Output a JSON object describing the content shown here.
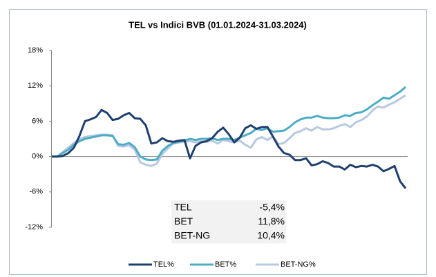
{
  "chart_data": {
    "type": "line",
    "title": "TEL vs Indici BVB (01.01.2024-31.03.2024)",
    "ylim": [
      -12,
      18
    ],
    "yticks": [
      {
        "value": -12,
        "label": "-12%"
      },
      {
        "value": -6,
        "label": "-6%"
      },
      {
        "value": 0,
        "label": "0%"
      },
      {
        "value": 6,
        "label": "6%"
      },
      {
        "value": 12,
        "label": "12%"
      },
      {
        "value": 18,
        "label": "18%"
      }
    ],
    "grid": false,
    "legend": "bottom",
    "series": [
      {
        "name": "TEL%",
        "color": "#1f3f6e",
        "values": [
          0,
          0,
          0.1,
          0.6,
          1.5,
          3.5,
          6.0,
          6.3,
          6.7,
          7.9,
          7.4,
          6.2,
          6.4,
          7.0,
          7.4,
          6.5,
          6.4,
          5.3,
          2.2,
          2.4,
          3.1,
          2.6,
          2.5,
          2.7,
          2.8,
          -0.3,
          1.8,
          2.4,
          2.6,
          3.1,
          4.2,
          4.9,
          3.8,
          2.4,
          3.2,
          4.8,
          5.3,
          4.7,
          5.0,
          5.0,
          3.4,
          1.7,
          0.6,
          0.3,
          -0.6,
          -0.6,
          -0.3,
          -1.5,
          -1.3,
          -0.8,
          -1.1,
          -1.7,
          -1.7,
          -2.2,
          -1.4,
          -1.8,
          -1.6,
          -1.7,
          -1.4,
          -1.7,
          -2.5,
          -2.1,
          -1.6,
          -4.2,
          -5.4
        ]
      },
      {
        "name": "BET%",
        "color": "#4bacc6",
        "values": [
          0,
          0,
          0.6,
          1.2,
          2.0,
          2.6,
          3.0,
          3.2,
          3.4,
          3.6,
          3.6,
          3.5,
          2.1,
          2.0,
          2.3,
          1.6,
          0.0,
          -0.5,
          -0.6,
          -0.5,
          1.0,
          1.8,
          2.3,
          2.5,
          2.7,
          3.0,
          2.8,
          3.0,
          3.0,
          3.1,
          2.8,
          3.0,
          3.0,
          2.8,
          3.2,
          3.6,
          4.0,
          4.7,
          4.5,
          4.8,
          4.2,
          4.3,
          4.4,
          5.0,
          5.8,
          6.3,
          6.6,
          6.6,
          6.9,
          6.6,
          6.5,
          6.5,
          6.6,
          7.0,
          6.9,
          7.4,
          7.5,
          8.0,
          8.7,
          9.3,
          10.0,
          9.8,
          10.4,
          11.0,
          11.8
        ]
      },
      {
        "name": "BET-NG%",
        "color": "#b8c8e0",
        "values": [
          0,
          0,
          0.8,
          1.5,
          2.3,
          3.0,
          3.3,
          3.5,
          3.6,
          3.7,
          3.7,
          3.6,
          1.8,
          1.7,
          1.9,
          1.2,
          -1.0,
          -1.4,
          -1.6,
          -1.2,
          0.4,
          1.4,
          2.2,
          2.4,
          2.5,
          2.6,
          2.4,
          2.6,
          2.5,
          2.7,
          2.2,
          2.8,
          2.6,
          2.4,
          2.7,
          2.0,
          1.5,
          2.9,
          3.3,
          2.8,
          3.4,
          2.1,
          2.3,
          3.1,
          4.0,
          4.3,
          4.8,
          4.4,
          5.0,
          4.6,
          4.6,
          4.8,
          5.2,
          5.5,
          5.0,
          5.8,
          6.2,
          6.8,
          7.8,
          8.5,
          8.3,
          8.8,
          9.2,
          9.8,
          10.4
        ]
      }
    ],
    "table": {
      "rows": [
        [
          "TEL",
          "-5,4%"
        ],
        [
          "BET",
          "11,8%"
        ],
        [
          "BET-NG",
          "10,4%"
        ]
      ]
    }
  }
}
